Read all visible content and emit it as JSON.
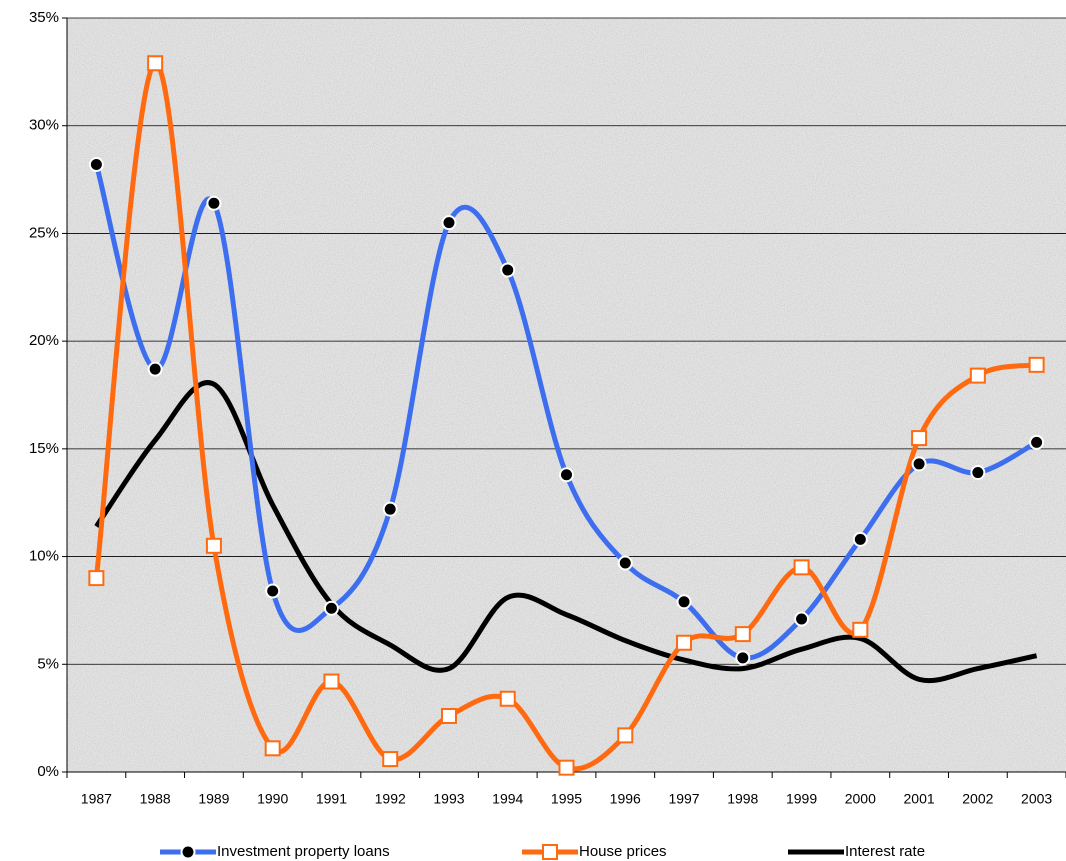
{
  "chart_data": {
    "type": "line",
    "categories": [
      "1987",
      "1988",
      "1989",
      "1990",
      "1991",
      "1992",
      "1993",
      "1994",
      "1995",
      "1996",
      "1997",
      "1998",
      "1999",
      "2000",
      "2001",
      "2002",
      "2003"
    ],
    "series": [
      {
        "name": "Investment property loans",
        "color": "#3d6ef0",
        "marker": "circle",
        "values": [
          28.2,
          18.7,
          26.4,
          8.4,
          7.6,
          12.2,
          25.5,
          23.3,
          13.8,
          9.7,
          7.9,
          5.3,
          7.1,
          10.8,
          14.3,
          13.9,
          15.3
        ]
      },
      {
        "name": "House prices",
        "color": "#ff6a10",
        "marker": "square",
        "values": [
          9.0,
          32.9,
          10.5,
          1.1,
          4.2,
          0.6,
          2.6,
          3.4,
          0.2,
          1.7,
          6.0,
          6.4,
          9.5,
          6.6,
          15.5,
          18.4,
          18.9
        ]
      },
      {
        "name": "Interest rate",
        "color": "#000000",
        "marker": "none",
        "values": [
          11.4,
          15.4,
          18.0,
          12.4,
          7.8,
          5.9,
          4.8,
          8.1,
          7.3,
          6.1,
          5.2,
          4.8,
          5.7,
          6.2,
          4.3,
          4.8,
          5.4
        ]
      }
    ],
    "ylim": [
      0,
      35
    ],
    "yticks": [
      {
        "value": 0,
        "label": "0%"
      },
      {
        "value": 5,
        "label": "5%"
      },
      {
        "value": 10,
        "label": "10%"
      },
      {
        "value": 15,
        "label": "15%"
      },
      {
        "value": 20,
        "label": "20%"
      },
      {
        "value": 25,
        "label": "25%"
      },
      {
        "value": 30,
        "label": "30%"
      },
      {
        "value": 35,
        "label": "35%"
      }
    ],
    "grid": true,
    "smooth": true,
    "legend": "bottom"
  }
}
